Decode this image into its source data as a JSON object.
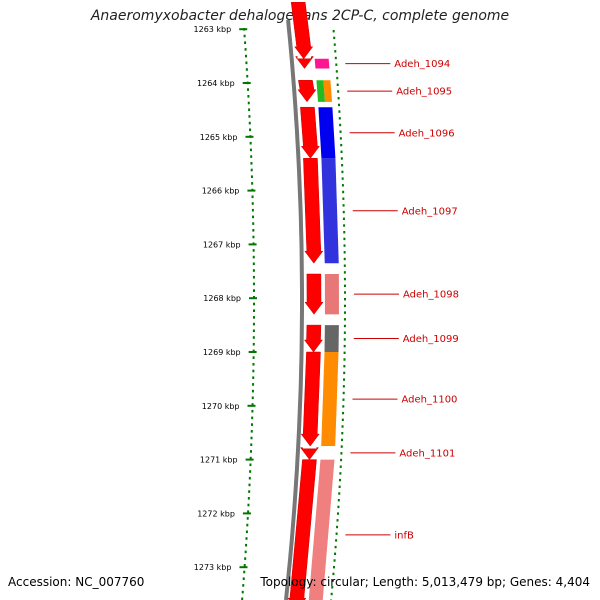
{
  "title": "Anaeromyxobacter dehalogenans 2CP-C, complete genome",
  "footer": {
    "accession": "Accession: NC_007760",
    "topology": "Topology: circular; Length: 5,013,479 bp; Genes: 4,404"
  },
  "ticks": [
    {
      "label": "1263 kbp",
      "kbp": 1263
    },
    {
      "label": "1264 kbp",
      "kbp": 1264
    },
    {
      "label": "1265 kbp",
      "kbp": 1265
    },
    {
      "label": "1266 kbp",
      "kbp": 1266
    },
    {
      "label": "1267 kbp",
      "kbp": 1267
    },
    {
      "label": "1268 kbp",
      "kbp": 1268
    },
    {
      "label": "1269 kbp",
      "kbp": 1269
    },
    {
      "label": "1270 kbp",
      "kbp": 1270
    },
    {
      "label": "1271 kbp",
      "kbp": 1271
    },
    {
      "label": "1272 kbp",
      "kbp": 1272
    },
    {
      "label": "1273 kbp",
      "kbp": 1273
    }
  ],
  "genes": [
    {
      "name": "Adeh_1094",
      "start_kbp": 1263.55,
      "end_kbp": 1263.73,
      "color": "#ff1493"
    },
    {
      "name": "Adeh_1095",
      "start_kbp": 1263.95,
      "end_kbp": 1264.35,
      "color": "#22bb22",
      "color2": "#ff8c00"
    },
    {
      "name": "Adeh_1096",
      "start_kbp": 1264.45,
      "end_kbp": 1265.4,
      "color": "#0000ee"
    },
    {
      "name": "Adeh_1097",
      "start_kbp": 1265.4,
      "end_kbp": 1267.35,
      "color": "#3333dd"
    },
    {
      "name": "Adeh_1098",
      "start_kbp": 1267.55,
      "end_kbp": 1268.3,
      "color": "#e87878"
    },
    {
      "name": "Adeh_1099",
      "start_kbp": 1268.5,
      "end_kbp": 1269.0,
      "color": "#666666"
    },
    {
      "name": "Adeh_1100",
      "start_kbp": 1269.0,
      "end_kbp": 1270.75,
      "color": "#ff8c00"
    },
    {
      "name": "Adeh_1101",
      "start_kbp": 1270.75,
      "end_kbp": 1271.0,
      "color": "#ffffff"
    },
    {
      "name": "infB",
      "start_kbp": 1271.0,
      "end_kbp": 1273.8,
      "color": "#f08080"
    }
  ],
  "colors": {
    "cds_forward": "#ff0000",
    "backbone": "#777777",
    "tick": "#007700",
    "label": "#cc0000"
  }
}
